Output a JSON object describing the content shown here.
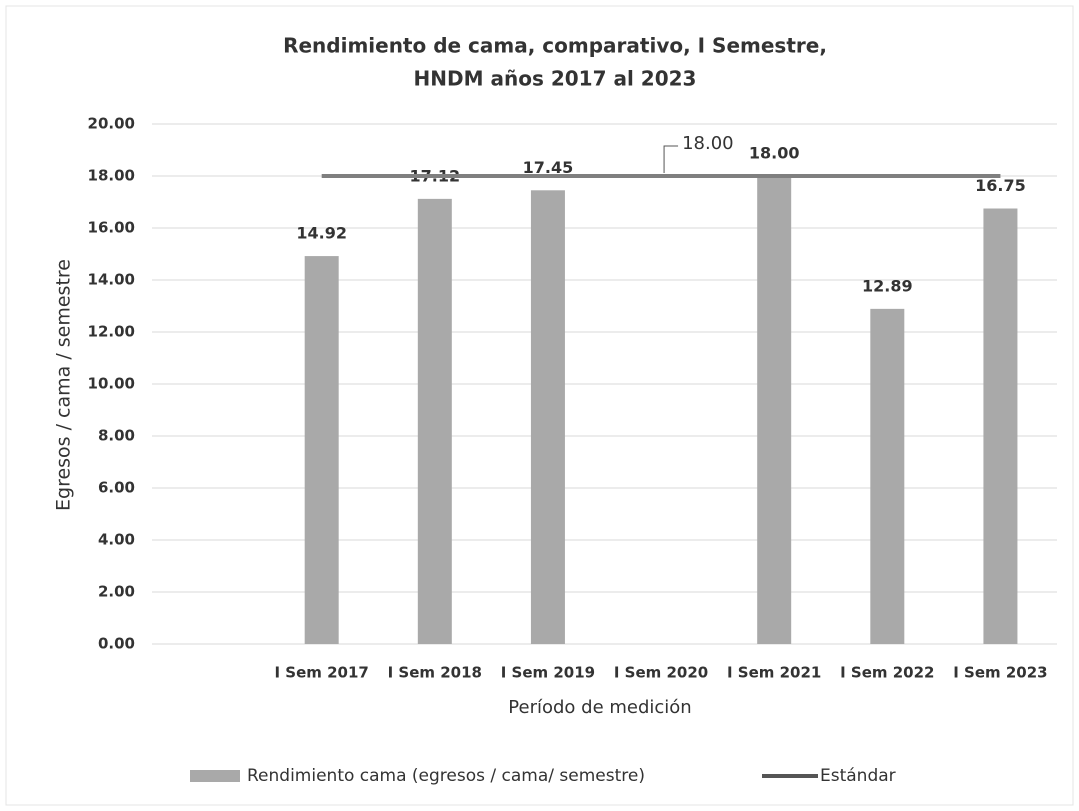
{
  "chart_data": {
    "type": "bar",
    "title": [
      "Rendimiento de cama, comparativo, I Semestre,",
      "HNDM años 2017 al 2023"
    ],
    "x_label": "Período de medición",
    "y_label": "Egresos / cama / semestre",
    "categories": [
      null,
      "I Sem 2017",
      "I Sem 2018",
      "I Sem 2019",
      "I Sem 2020",
      "I Sem 2021",
      "I Sem 2022",
      "I Sem 2023"
    ],
    "series": [
      {
        "name": "Rendimiento cama (egresos / cama/ semestre)",
        "type": "bar",
        "color": "#a9a9a9",
        "values": [
          null,
          14.92,
          17.12,
          17.45,
          null,
          18.0,
          12.89,
          16.75
        ],
        "value_labels": [
          null,
          "14.92",
          "17.12",
          "17.45",
          null,
          "18.00",
          "12.89",
          "16.75"
        ]
      },
      {
        "name": "Estándar",
        "type": "line",
        "color": "#7f7f7f",
        "values": [
          null,
          18,
          18,
          18,
          18,
          18,
          18,
          18
        ],
        "value_labels": [
          null,
          null,
          null,
          null,
          "18.00",
          null,
          null,
          null
        ]
      }
    ],
    "ylim": [
      0,
      20
    ],
    "yticks": [
      {
        "value": 0,
        "label": "0.00"
      },
      {
        "value": 2,
        "label": "2.00"
      },
      {
        "value": 4,
        "label": "4.00"
      },
      {
        "value": 6,
        "label": "6.00"
      },
      {
        "value": 8,
        "label": "8.00"
      },
      {
        "value": 10,
        "label": "10.00"
      },
      {
        "value": 12,
        "label": "12.00"
      },
      {
        "value": 14,
        "label": "14.00"
      },
      {
        "value": 16,
        "label": "16.00"
      },
      {
        "value": 18,
        "label": "18.00"
      },
      {
        "value": 20,
        "label": "20.00"
      }
    ],
    "grid": true,
    "legend": "bottom"
  }
}
